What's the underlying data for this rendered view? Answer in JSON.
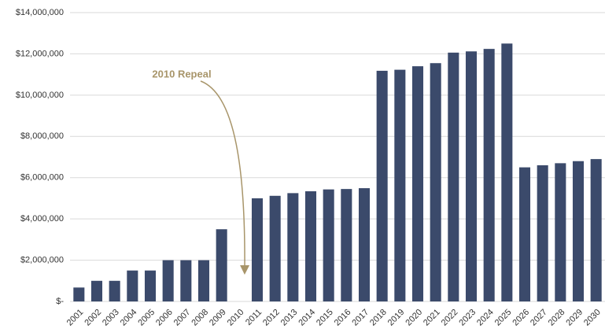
{
  "chart_data": {
    "type": "bar",
    "annotation": "2010 Repeal",
    "categories": [
      "2001",
      "2002",
      "2003",
      "2004",
      "2005",
      "2006",
      "2007",
      "2008",
      "2009",
      "2010",
      "2011",
      "2012",
      "2013",
      "2014",
      "2015",
      "2016",
      "2017",
      "2018",
      "2019",
      "2020",
      "2021",
      "2022",
      "2023",
      "2024",
      "2025",
      "2026",
      "2027",
      "2028",
      "2029",
      "2030"
    ],
    "values": [
      675000,
      1000000,
      1000000,
      1500000,
      1500000,
      2000000,
      2000000,
      2000000,
      3500000,
      null,
      5000000,
      5120000,
      5250000,
      5340000,
      5430000,
      5450000,
      5490000,
      11180000,
      11230000,
      11400000,
      11550000,
      12060000,
      12120000,
      12240000,
      12500000,
      6500000,
      6600000,
      6700000,
      6800000,
      6900000
    ],
    "color": "#3b4a6b",
    "ylim": [
      0,
      14000000
    ],
    "yticks": [
      {
        "value": 0,
        "label": "$-"
      },
      {
        "value": 2000000,
        "label": "$2,000,000"
      },
      {
        "value": 4000000,
        "label": "$4,000,000"
      },
      {
        "value": 6000000,
        "label": "$6,000,000"
      },
      {
        "value": 8000000,
        "label": "$8,000,000"
      },
      {
        "value": 10000000,
        "label": "$10,000,000"
      },
      {
        "value": 12000000,
        "label": "$12,000,000"
      },
      {
        "value": 14000000,
        "label": "$14,000,000"
      }
    ],
    "grid": true
  }
}
